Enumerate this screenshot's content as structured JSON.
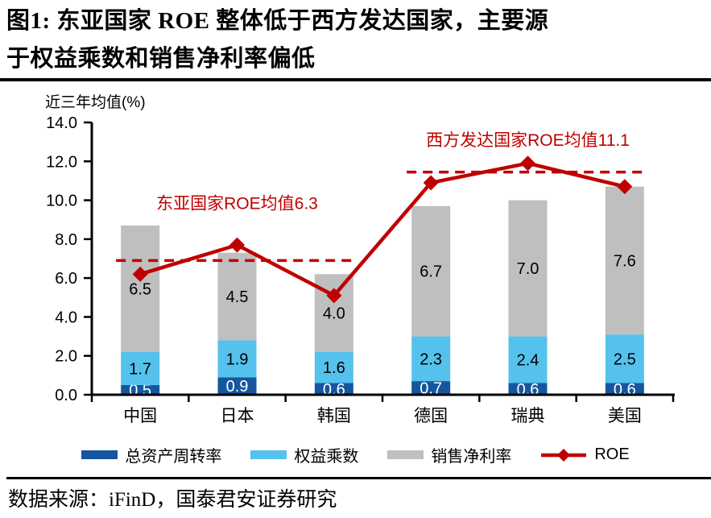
{
  "figure": {
    "title_line1": "图1:  东亚国家 ROE 整体低于西方发达国家，主要源",
    "title_line2": "于权益乘数和销售净利率偏低",
    "source_text": "数据来源：iFinD，国泰君安证券研究"
  },
  "chart_data": {
    "type": "bar",
    "subtype": "stacked-bar-with-line-overlay",
    "ylabel": "近三年均值(%)",
    "ylim": [
      0,
      14
    ],
    "ytick_step": 2,
    "ytick_labels": [
      "0.0",
      "2.0",
      "4.0",
      "6.0",
      "8.0",
      "10.0",
      "12.0",
      "14.0"
    ],
    "grid": false,
    "legend_position": "bottom",
    "categories": [
      "中国",
      "日本",
      "韩国",
      "德国",
      "瑞典",
      "美国"
    ],
    "series": [
      {
        "name": "总资产周转率",
        "color": "#15569F",
        "label_color": "#FFFFFF",
        "values": [
          0.5,
          0.9,
          0.6,
          0.7,
          0.6,
          0.6
        ]
      },
      {
        "name": "权益乘数",
        "color": "#54C2EC",
        "label_color": "#000000",
        "values": [
          1.7,
          1.9,
          1.6,
          2.3,
          2.4,
          2.5
        ]
      },
      {
        "name": "销售净利率",
        "color": "#BFBFBF",
        "label_color": "#000000",
        "values": [
          6.5,
          4.5,
          4.0,
          6.7,
          7.0,
          7.6
        ]
      }
    ],
    "line_series": {
      "name": "ROE",
      "color": "#C00000",
      "marker": "diamond",
      "values": [
        6.2,
        7.7,
        5.1,
        10.9,
        11.9,
        10.7
      ]
    },
    "annotations": [
      {
        "text": "东亚国家ROE均值6.3",
        "value": 6.9,
        "label_value": 9.55,
        "span": [
          0,
          2
        ],
        "color": "#C00000"
      },
      {
        "text": "西方发达国家ROE均值11.1",
        "value": 11.45,
        "label_value": 12.8,
        "span": [
          3,
          5
        ],
        "color": "#C00000"
      }
    ]
  }
}
